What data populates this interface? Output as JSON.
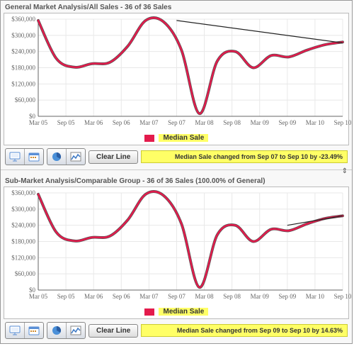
{
  "chart_common": {
    "type": "line",
    "x_labels": [
      "Mar 05",
      "Sep 05",
      "Mar 06",
      "Sep 06",
      "Mar 07",
      "Sep 07",
      "Mar 08",
      "Sep 08",
      "Mar 09",
      "Sep 09",
      "Mar 10",
      "Sep 10"
    ],
    "ylim": [
      0,
      360000
    ],
    "ytick_step": 60000,
    "y_labels": [
      "$0",
      "$60,000",
      "$120,000",
      "$180,000",
      "$240,000",
      "$300,000",
      "$360,000"
    ],
    "background_color": "#ffffff",
    "grid_color": "#e8e8e8",
    "axis_color": "#666666",
    "tick_font_size": 9,
    "tick_color": "#666666",
    "series": {
      "name": "Median Sale",
      "color": "#e31b4c",
      "outline_color": "#555555",
      "line_width": 2.5,
      "values": [
        355000,
        215000,
        182000,
        195000,
        200000,
        260000,
        355000,
        350000,
        245000,
        10000,
        205000,
        240000,
        180000,
        225000,
        220000,
        245000,
        265000,
        275000
      ]
    },
    "legend": {
      "swatch_color": "#e31b4c",
      "label_bg": "#ffff66",
      "label": "Median Sale"
    },
    "change_note_bg": "#ffff66"
  },
  "panels": [
    {
      "title": "General Market Analysis/All Sales - 36 of 36 Sales",
      "trend_line": {
        "from_index": 5,
        "from_value": 355000,
        "to_index": 11,
        "to_value": 272000,
        "color": "#222222"
      },
      "change_note": "Median Sale changed from Sep 07 to Sep 10 by -23.49%"
    },
    {
      "title": "Sub-Market Analysis/Comparable Group - 36 of 36 Sales (100.00% of General)",
      "trend_line": {
        "from_index": 9,
        "from_value": 240000,
        "to_index": 11,
        "to_value": 275000,
        "color": "#222222"
      },
      "change_note": "Median Sale changed from Sep 09 to Sep 10 by 14.63%"
    }
  ],
  "toolbar": {
    "clear_line": "Clear Line",
    "icons": [
      "presentation-icon",
      "calendar-icon",
      "pie-icon",
      "line-chart-icon"
    ]
  }
}
